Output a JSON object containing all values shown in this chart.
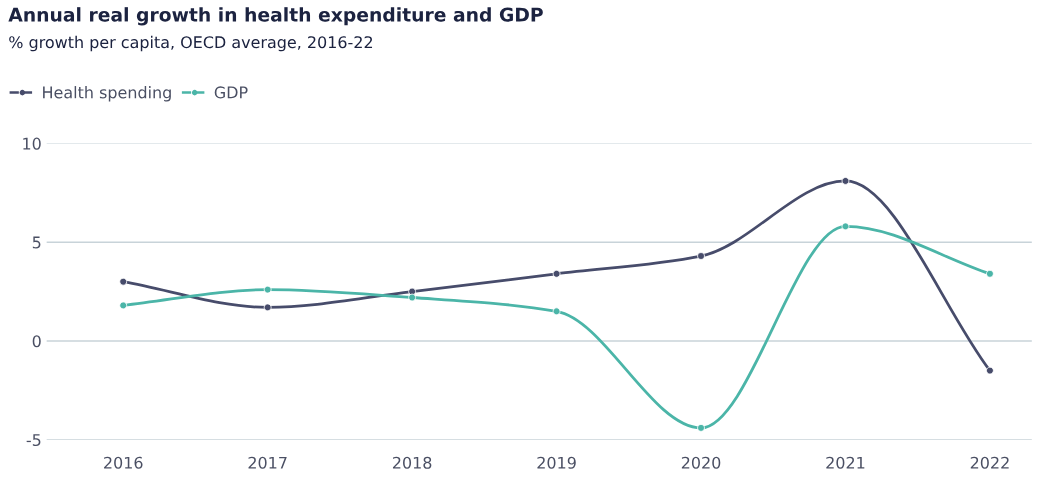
{
  "chart_data": {
    "type": "line",
    "title": "Annual real growth in health expenditure and GDP",
    "subtitle": "% growth per capita, OECD average, 2016-22",
    "categories": [
      "2016",
      "2017",
      "2018",
      "2019",
      "2020",
      "2021",
      "2022"
    ],
    "series": [
      {
        "name": "Health spending",
        "color": "#474c6b",
        "values": [
          3.0,
          1.7,
          2.5,
          3.4,
          4.3,
          8.1,
          -1.5
        ]
      },
      {
        "name": "GDP",
        "color": "#4bb5a8",
        "values": [
          1.8,
          2.6,
          2.2,
          1.5,
          -4.4,
          5.8,
          3.4
        ]
      }
    ],
    "ylim": [
      -5,
      10
    ],
    "yticks": [
      -5,
      0,
      5,
      10
    ],
    "grid": "y",
    "legend": "top left",
    "marker": "circle",
    "line_style": "solid"
  }
}
